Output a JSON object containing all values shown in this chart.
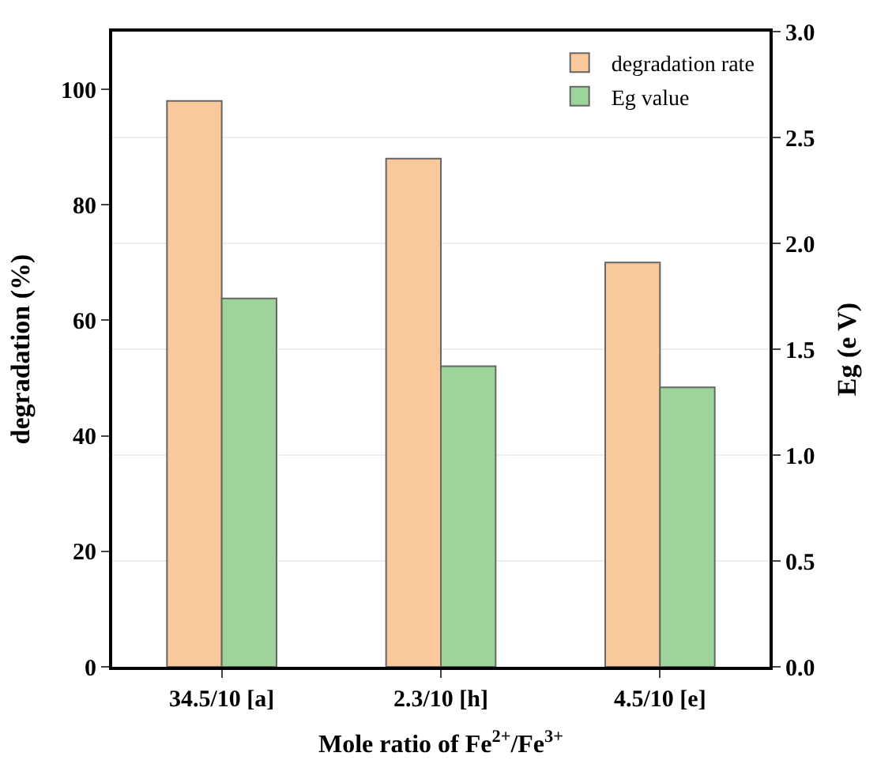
{
  "chart_data": {
    "type": "bar",
    "xlabel": "Mole ratio of Fe$^{2+}$/Fe$^{3+}$",
    "ylabel": "degradation (%)",
    "y2label": "Eg (e V)",
    "categories": [
      "34.5/10 [a]",
      "2.3/10 [h]",
      "4.5/10 [e]"
    ],
    "series": [
      {
        "name": "degradation rate",
        "color": "#f9c89b",
        "values": [
          98,
          88,
          70
        ]
      },
      {
        "name": "Eg value",
        "color": "#9dd49a",
        "values": [
          1.74,
          1.42,
          1.32
        ],
        "axis": "y2"
      }
    ],
    "ylim": [
      0,
      110
    ],
    "yticks": [
      0,
      20,
      40,
      60,
      80,
      100
    ],
    "y2lim": [
      0,
      3.0
    ],
    "y2ticks": [
      {
        "value": 0,
        "label": "0.0"
      },
      0.5,
      {
        "value": 1,
        "label": "1.0"
      },
      1.5,
      {
        "value": 2,
        "label": "2.0"
      },
      2.5,
      {
        "value": 3,
        "label": "3.0"
      }
    ],
    "grid": "y2",
    "legend": "top right"
  }
}
